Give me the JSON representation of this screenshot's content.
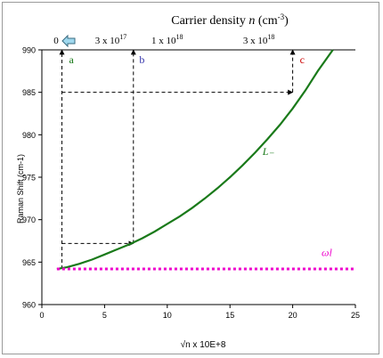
{
  "chart_data": {
    "type": "line",
    "title": "Carrier density n (cm-3)",
    "title_parts": {
      "prefix": "Carrier density ",
      "var": "n",
      "unit_open": " (cm",
      "exp": "-3",
      "unit_close": ")"
    },
    "xlabel": "√n x 10E+8",
    "ylabel": "Raman Shift (cm-1)",
    "xlim": [
      0,
      25
    ],
    "ylim": [
      960,
      990
    ],
    "xticks": [
      0,
      5,
      10,
      15,
      20,
      25
    ],
    "yticks": [
      960,
      965,
      970,
      975,
      980,
      985,
      990
    ],
    "grid": false,
    "top_axis_ticks": [
      {
        "x": 0.2,
        "base": "0",
        "exp": ""
      },
      {
        "x": 5.5,
        "base": "3 x 10",
        "exp": "17"
      },
      {
        "x": 10,
        "base": "1 x 10",
        "exp": "18"
      },
      {
        "x": 17.3,
        "base": "3 x 10",
        "exp": "18"
      }
    ],
    "series": [
      {
        "name": "L₋",
        "color": "#1a7a1a",
        "style": "solid",
        "x": [
          1.2,
          2,
          3,
          4,
          5,
          6,
          7,
          8,
          9,
          10,
          11,
          12,
          13,
          14,
          15,
          16,
          17,
          18,
          19,
          20,
          21,
          22,
          23.2
        ],
        "y": [
          964.2,
          964.4,
          964.8,
          965.3,
          965.9,
          966.5,
          967.1,
          967.8,
          968.6,
          969.5,
          970.4,
          971.4,
          972.5,
          973.7,
          975.0,
          976.4,
          977.9,
          979.5,
          981.2,
          983.1,
          985.2,
          987.5,
          990.0
        ]
      },
      {
        "name": "ωl",
        "color": "#ee00cc",
        "style": "dotted",
        "x": [
          1.2,
          25
        ],
        "y": [
          964.2,
          964.2
        ]
      }
    ],
    "annotations": [
      {
        "label": "a",
        "color": "#1a7a1a",
        "x": 1.6
      },
      {
        "label": "b",
        "color": "#3333aa",
        "x": 7.2
      },
      {
        "label": "c",
        "color": "#cc0000",
        "x": 20
      }
    ],
    "guides": [
      {
        "from": [
          1.6,
          964.2
        ],
        "to": [
          1.6,
          990
        ]
      },
      {
        "from": [
          1.6,
          967.2
        ],
        "to": [
          7.3,
          967.2
        ]
      },
      {
        "from": [
          7.3,
          967.2
        ],
        "to": [
          7.3,
          990
        ]
      },
      {
        "from": [
          1.6,
          985.0
        ],
        "to": [
          20.0,
          985.0
        ]
      },
      {
        "from": [
          20.0,
          985.0
        ],
        "to": [
          20.0,
          990
        ]
      }
    ],
    "series_label_positions": [
      {
        "text": "L₋",
        "x": 17.6,
        "y": 977.6,
        "color": "#1a7a1a"
      },
      {
        "text": "ωl",
        "x": 22.3,
        "y": 965.7,
        "color": "#ee00cc"
      }
    ]
  },
  "colors": {
    "axis": "#000000",
    "guide": "#000000",
    "curve": "#1a7a1a",
    "dotted": "#ee00cc"
  },
  "icons": {
    "arrow": "left-arrow-icon"
  }
}
